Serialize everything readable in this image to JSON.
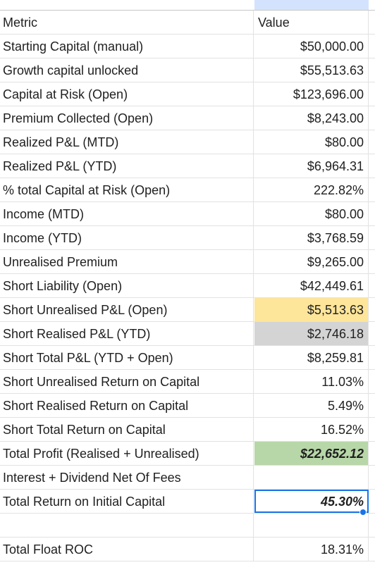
{
  "header": {
    "metric": "Metric",
    "value": "Value"
  },
  "rows": [
    {
      "metric": "Starting Capital (manual)",
      "value": "$50,000.00"
    },
    {
      "metric": "Growth capital unlocked",
      "value": "$55,513.63"
    },
    {
      "metric": "Capital at Risk (Open)",
      "value": "$123,696.00"
    },
    {
      "metric": "Premium Collected (Open)",
      "value": "$8,243.00"
    },
    {
      "metric": "Realized P&L (MTD)",
      "value": "$80.00"
    },
    {
      "metric": "Realized P&L (YTD)",
      "value": "$6,964.31"
    },
    {
      "metric": "% total Capital at Risk (Open)",
      "value": "222.82%"
    },
    {
      "metric": "Income (MTD)",
      "value": "$80.00"
    },
    {
      "metric": "Income (YTD)",
      "value": "$3,768.59"
    },
    {
      "metric": "Unrealised Premium",
      "value": "$9,265.00"
    },
    {
      "metric": "Short Liability (Open)",
      "value": "$42,449.61"
    },
    {
      "metric": "Short Unrealised P&L (Open)",
      "value": "$5,513.63",
      "highlight": "#fde59a"
    },
    {
      "metric": "Short Realised P&L (YTD)",
      "value": "$2,746.18",
      "highlight": "#d4d4d4"
    },
    {
      "metric": "Short Total P&L (YTD + Open)",
      "value": "$8,259.81"
    },
    {
      "metric": "Short Unrealised Return on Capital",
      "value": "11.03%"
    },
    {
      "metric": "Short Realised Return on Capital",
      "value": "5.49%"
    },
    {
      "metric": "Short Total Return on Capital",
      "value": "16.52%"
    },
    {
      "metric": "Total Profit (Realised + Unrealised)",
      "value": "$22,652.12",
      "highlight": "#b7d7a8"
    },
    {
      "metric": "Interest + Dividend Net Of Fees",
      "value": ""
    },
    {
      "metric": "Total Return on Initial Capital",
      "value": "45.30%",
      "selected": true
    },
    {
      "metric": "",
      "value": ""
    },
    {
      "metric": "Total Float ROC",
      "value": "18.31%"
    }
  ],
  "colors": {
    "selection": "#1a73e8",
    "selected_column_header": "#d3e3fd"
  }
}
